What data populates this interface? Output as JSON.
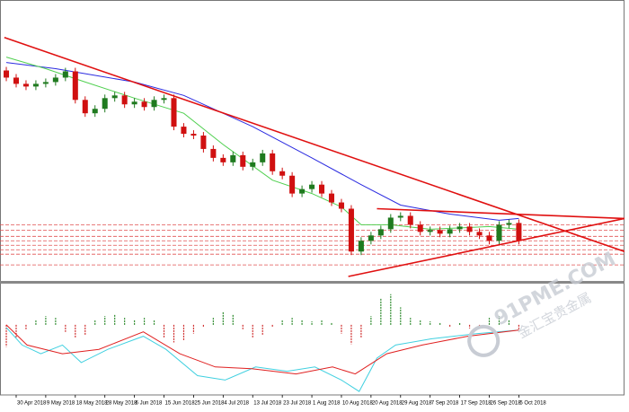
{
  "chart_data": [
    {
      "type": "candlestick",
      "xlim": [
        -0.64,
        62.72
      ],
      "ylim": [
        -25,
        287
      ],
      "up_color": "#1f7a1f",
      "down_color": "#d01010",
      "open": [
        210,
        202,
        195,
        192,
        195,
        197,
        202,
        209,
        177,
        162,
        167,
        179,
        182,
        172,
        175,
        169,
        177,
        179,
        147,
        139,
        137,
        122,
        112,
        107,
        115,
        102,
        107,
        117,
        97,
        92,
        72,
        77,
        82,
        72,
        62,
        55,
        7,
        19,
        25,
        32,
        45,
        47,
        37,
        29,
        31,
        27,
        32,
        35,
        29,
        25,
        19,
        37,
        39
      ],
      "high": [
        214,
        206,
        199,
        199,
        201,
        206,
        213,
        213,
        181,
        171,
        183,
        186,
        186,
        179,
        179,
        181,
        183,
        183,
        151,
        143,
        141,
        126,
        116,
        119,
        119,
        111,
        121,
        121,
        101,
        96,
        81,
        86,
        86,
        76,
        66,
        59,
        23,
        29,
        36,
        49,
        51,
        51,
        41,
        35,
        35,
        36,
        39,
        39,
        33,
        29,
        41,
        43,
        43
      ],
      "low": [
        198,
        191,
        188,
        188,
        191,
        193,
        198,
        173,
        158,
        158,
        163,
        175,
        168,
        168,
        165,
        165,
        173,
        143,
        135,
        133,
        118,
        108,
        103,
        103,
        98,
        98,
        103,
        93,
        88,
        68,
        68,
        73,
        68,
        58,
        51,
        3,
        3,
        15,
        21,
        28,
        41,
        33,
        25,
        25,
        23,
        23,
        28,
        25,
        21,
        15,
        15,
        33,
        15
      ],
      "close": [
        202,
        195,
        192,
        195,
        197,
        202,
        209,
        177,
        162,
        167,
        179,
        182,
        172,
        175,
        169,
        177,
        179,
        147,
        139,
        137,
        122,
        112,
        107,
        115,
        102,
        107,
        117,
        97,
        92,
        72,
        77,
        82,
        72,
        62,
        55,
        7,
        19,
        25,
        32,
        45,
        47,
        37,
        29,
        31,
        27,
        32,
        35,
        29,
        25,
        19,
        37,
        39,
        19
      ],
      "lines": [
        {
          "color": "#2a2ae0",
          "x": [
            0,
            5,
            13,
            18,
            25,
            31,
            36,
            40,
            45,
            50,
            52
          ],
          "y": [
            219,
            212,
            197,
            182,
            147,
            112,
            82,
            59,
            49,
            42,
            44
          ]
        },
        {
          "color": "#50d050",
          "x": [
            0,
            4,
            8,
            13,
            18,
            22,
            27,
            31,
            34,
            36,
            39,
            43,
            49,
            52
          ],
          "y": [
            225,
            212,
            197,
            179,
            162,
            127,
            87,
            72,
            57,
            37,
            37,
            32,
            35,
            32
          ]
        }
      ],
      "trendlines": [
        {
          "color": "#e01010",
          "x": [
            -0.2,
            62.72
          ],
          "y": [
            247,
            7
          ]
        },
        {
          "color": "#e01010",
          "x": [
            34.7,
            62.72
          ],
          "y": [
            -21,
            44
          ]
        },
        {
          "color": "#e01010",
          "x": [
            37.6,
            62.72
          ],
          "y": [
            55,
            44
          ]
        }
      ],
      "levels": [
        37,
        31,
        24,
        19,
        14,
        9,
        4,
        -8
      ],
      "level_color": "#e05050"
    },
    {
      "type": "macd",
      "xlim": [
        -0.64,
        62.72
      ],
      "ylim": [
        -80,
        45
      ],
      "up_color": "#2e8b2e",
      "down_color": "#d03030",
      "values": [
        -25,
        -15,
        -5,
        5,
        10,
        8,
        -8,
        -15,
        -12,
        5,
        10,
        12,
        8,
        6,
        8,
        5,
        -15,
        -20,
        -18,
        -10,
        -3,
        8,
        15,
        12,
        -5,
        -15,
        -12,
        -3,
        5,
        8,
        6,
        4,
        5,
        3,
        -10,
        -22,
        -15,
        10,
        30,
        35,
        20,
        8,
        5,
        4,
        3,
        -3,
        2,
        -4,
        -2,
        8,
        10,
        6,
        -5
      ],
      "lines": [
        {
          "color": "#40d0e0",
          "x": [
            0,
            1.6,
            3.5,
            5.7,
            7.6,
            10.3,
            13.9,
            16.2,
            19.4,
            22.2,
            25.3,
            28.5,
            31.3,
            34,
            35.8,
            37.6,
            39.5,
            43.1,
            47.7,
            52
          ],
          "y": [
            -3,
            -23,
            -33,
            -23,
            -43,
            -28,
            -13,
            -28,
            -58,
            -63,
            -48,
            -53,
            -48,
            -63,
            -76,
            -38,
            -23,
            -16,
            -10,
            -6
          ]
        },
        {
          "color": "#e02020",
          "x": [
            0,
            2.1,
            5.7,
            9.4,
            13.9,
            17.6,
            21.2,
            24.9,
            29.4,
            33.1,
            35.4,
            38.6,
            42.2,
            46.8,
            52
          ],
          "y": [
            0,
            -23,
            -33,
            -28,
            -8,
            -33,
            -48,
            -50,
            -56,
            -48,
            -56,
            -33,
            -23,
            -13,
            -6
          ]
        }
      ],
      "xticks": [
        {
          "value": 1,
          "label": "30 Apr 2018"
        },
        {
          "value": 4,
          "label": "9 May 2018"
        },
        {
          "value": 7,
          "label": "18 May 2018"
        },
        {
          "value": 10,
          "label": "28 May 2018"
        },
        {
          "value": 13,
          "label": "6 Jun 2018"
        },
        {
          "value": 16,
          "label": "15 Jun 2018"
        },
        {
          "value": 19,
          "label": "25 Jun 2018"
        },
        {
          "value": 22,
          "label": "4 Jul 2018"
        },
        {
          "value": 25,
          "label": "13 Jul 2018"
        },
        {
          "value": 28,
          "label": "23 Jul 2018"
        },
        {
          "value": 31,
          "label": "1 Aug 2018"
        },
        {
          "value": 34,
          "label": "10 Aug 2018"
        },
        {
          "value": 37,
          "label": "20 Aug 2018"
        },
        {
          "value": 40,
          "label": "29 Aug 2018"
        },
        {
          "value": 43,
          "label": "7 Sep 2018"
        },
        {
          "value": 46,
          "label": "17 Sep 2018"
        },
        {
          "value": 49,
          "label": "26 Sep 2018"
        },
        {
          "value": 52,
          "label": "5 Oct 2018"
        }
      ]
    }
  ],
  "watermark": {
    "text": "91PME.COM",
    "subtext": "金汇宝贵金属"
  }
}
